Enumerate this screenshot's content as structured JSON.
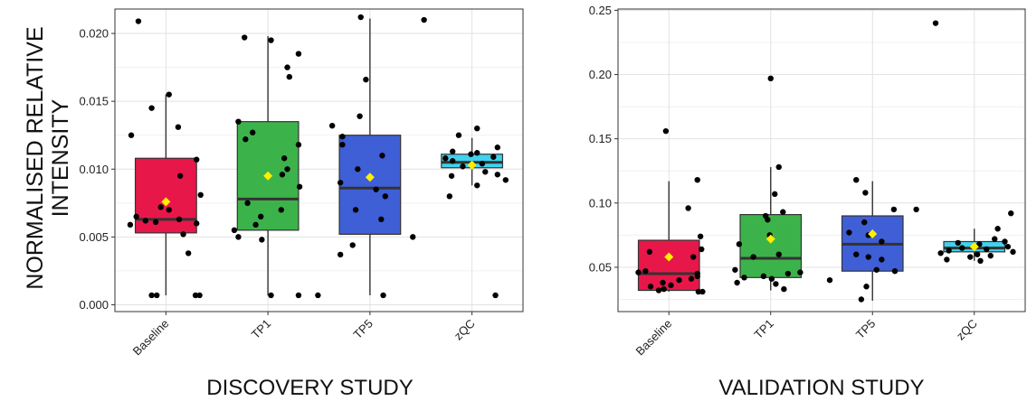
{
  "figure": {
    "ylabel_line1": "NORMALISED RELATIVE",
    "ylabel_line2": "INTENSITY"
  },
  "chart_data": [
    {
      "type": "box",
      "title": "",
      "xlabel": "DISCOVERY STUDY",
      "ylabel": "NORMALISED RELATIVE INTENSITY",
      "ylim": [
        -0.0005,
        0.0218
      ],
      "yticks": [
        0.0,
        0.005,
        0.01,
        0.015,
        0.02
      ],
      "ytick_labels": [
        "0.000",
        "0.005",
        "0.010",
        "0.015",
        "0.020"
      ],
      "grid": true,
      "categories": [
        "Baseline",
        "TP1",
        "TP5",
        "zQC"
      ],
      "colors": [
        "#e8174a",
        "#3cb34a",
        "#3f5fd6",
        "#3fd2ee"
      ],
      "mean_marker_color": "#ffee00",
      "boxes": [
        {
          "category": "Baseline",
          "lower_whisker": 0.0007,
          "q1": 0.0053,
          "median": 0.0063,
          "q3": 0.0108,
          "upper_whisker": 0.0155,
          "mean": 0.0076
        },
        {
          "category": "TP1",
          "lower_whisker": 0.0007,
          "q1": 0.0055,
          "median": 0.0078,
          "q3": 0.0135,
          "upper_whisker": 0.0198,
          "mean": 0.0095
        },
        {
          "category": "TP5",
          "lower_whisker": 0.0007,
          "q1": 0.0052,
          "median": 0.0086,
          "q3": 0.0125,
          "upper_whisker": 0.0211,
          "mean": 0.0094
        },
        {
          "category": "zQC",
          "lower_whisker": 0.0088,
          "q1": 0.0101,
          "median": 0.0105,
          "q3": 0.0111,
          "upper_whisker": 0.0123,
          "mean": 0.0103
        }
      ],
      "points": [
        {
          "category": "Baseline",
          "values": [
            0.0209,
            0.0155,
            0.0145,
            0.0131,
            0.0125,
            0.0107,
            0.0095,
            0.0081,
            0.0072,
            0.007,
            0.0065,
            0.0063,
            0.0062,
            0.0061,
            0.006,
            0.0059,
            0.0052,
            0.0038,
            0.0007,
            0.0007,
            0.0007,
            0.0007
          ],
          "jitter": [
            -0.27,
            0.03,
            -0.14,
            0.12,
            -0.34,
            0.3,
            0.14,
            0.34,
            -0.05,
            0.03,
            -0.29,
            0.13,
            -0.2,
            -0.1,
            0.3,
            -0.35,
            0.17,
            0.22,
            -0.14,
            -0.09,
            0.29,
            0.33
          ]
        },
        {
          "category": "TP1",
          "values": [
            0.0197,
            0.0195,
            0.0185,
            0.0175,
            0.0168,
            0.0135,
            0.0127,
            0.0122,
            0.0118,
            0.0108,
            0.01,
            0.0096,
            0.0087,
            0.0075,
            0.007,
            0.0065,
            0.0059,
            0.0055,
            0.005,
            0.0048,
            0.0007,
            0.0007
          ],
          "jitter": [
            -0.23,
            0.03,
            0.3,
            0.19,
            0.21,
            -0.29,
            -0.15,
            -0.22,
            0.3,
            0.16,
            0.19,
            0.14,
            0.31,
            -0.2,
            0.13,
            -0.07,
            -0.12,
            -0.33,
            -0.29,
            -0.06,
            0.03,
            0.3
          ]
        },
        {
          "category": "TP5",
          "values": [
            0.0212,
            0.021,
            0.0166,
            0.0139,
            0.0132,
            0.0124,
            0.0118,
            0.011,
            0.01,
            0.009,
            0.0085,
            0.008,
            0.007,
            0.0063,
            0.005,
            0.0044,
            0.0037,
            0.0007,
            0.0007
          ],
          "jitter": [
            -0.09,
            0.53,
            -0.04,
            -0.1,
            -0.37,
            -0.27,
            -0.27,
            0.12,
            -0.12,
            -0.29,
            0.06,
            0.15,
            -0.14,
            0.11,
            0.42,
            -0.17,
            -0.29,
            -0.51,
            0.13
          ]
        },
        {
          "category": "zQC",
          "values": [
            0.013,
            0.0125,
            0.0116,
            0.0113,
            0.0112,
            0.0111,
            0.0109,
            0.0108,
            0.0106,
            0.0104,
            0.0102,
            0.0098,
            0.0096,
            0.0095,
            0.0092,
            0.0088,
            0.008,
            0.0007
          ],
          "jitter": [
            0.05,
            -0.13,
            0.25,
            -0.19,
            0.05,
            -0.01,
            0.21,
            -0.26,
            -0.19,
            0.1,
            -0.09,
            0.13,
            0.25,
            -0.2,
            0.33,
            0.05,
            -0.22,
            0.23
          ]
        }
      ]
    },
    {
      "type": "box",
      "title": "",
      "xlabel": "VALIDATION STUDY",
      "ylabel": "",
      "ylim": [
        0.0155,
        0.251
      ],
      "yticks": [
        0.05,
        0.1,
        0.15,
        0.2,
        0.25
      ],
      "ytick_labels": [
        "0.05",
        "0.10",
        "0.15",
        "0.20",
        "0.25"
      ],
      "grid": true,
      "categories": [
        "Baseline",
        "TP1",
        "TP5",
        "zQC"
      ],
      "colors": [
        "#e8174a",
        "#3cb34a",
        "#3f5fd6",
        "#3fd2ee"
      ],
      "mean_marker_color": "#ffee00",
      "boxes": [
        {
          "category": "Baseline",
          "lower_whisker": 0.031,
          "q1": 0.032,
          "median": 0.045,
          "q3": 0.071,
          "upper_whisker": 0.117,
          "mean": 0.058
        },
        {
          "category": "TP1",
          "lower_whisker": 0.032,
          "q1": 0.042,
          "median": 0.057,
          "q3": 0.091,
          "upper_whisker": 0.128,
          "mean": 0.072
        },
        {
          "category": "TP5",
          "lower_whisker": 0.024,
          "q1": 0.047,
          "median": 0.068,
          "q3": 0.09,
          "upper_whisker": 0.117,
          "mean": 0.076
        },
        {
          "category": "zQC",
          "lower_whisker": 0.055,
          "q1": 0.062,
          "median": 0.065,
          "q3": 0.07,
          "upper_whisker": 0.08,
          "mean": 0.066
        }
      ],
      "points": [
        {
          "category": "Baseline",
          "values": [
            0.156,
            0.118,
            0.096,
            0.074,
            0.064,
            0.062,
            0.058,
            0.047,
            0.046,
            0.045,
            0.043,
            0.041,
            0.04,
            0.038,
            0.036,
            0.035,
            0.033,
            0.032,
            0.031,
            0.031
          ],
          "jitter": [
            -0.03,
            0.28,
            0.19,
            0.31,
            0.32,
            -0.19,
            0.24,
            -0.23,
            -0.3,
            0.28,
            0.28,
            0.22,
            0.1,
            -0.06,
            0.02,
            -0.18,
            -0.05,
            -0.1,
            0.33,
            0.29
          ]
        },
        {
          "category": "TP1",
          "values": [
            0.197,
            0.128,
            0.107,
            0.093,
            0.09,
            0.087,
            0.075,
            0.068,
            0.06,
            0.058,
            0.048,
            0.046,
            0.045,
            0.043,
            0.042,
            0.041,
            0.038,
            0.037,
            0.033
          ],
          "jitter": [
            0.0,
            0.08,
            0.04,
            0.12,
            -0.05,
            -0.03,
            -0.01,
            -0.31,
            0.08,
            -0.17,
            -0.35,
            0.29,
            0.17,
            -0.07,
            -0.26,
            0.01,
            -0.33,
            0.05,
            0.13
          ]
        },
        {
          "category": "TP5",
          "values": [
            0.24,
            0.118,
            0.108,
            0.095,
            0.095,
            0.085,
            0.077,
            0.075,
            0.07,
            0.06,
            0.058,
            0.056,
            0.048,
            0.047,
            0.04,
            0.035,
            0.025
          ],
          "jitter": [
            0.62,
            -0.16,
            -0.07,
            0.21,
            0.43,
            -0.08,
            -0.23,
            -0.04,
            0.09,
            -0.16,
            -0.04,
            0.09,
            0.04,
            0.22,
            -0.42,
            -0.06,
            -0.11
          ]
        },
        {
          "category": "zQC",
          "values": [
            0.092,
            0.08,
            0.072,
            0.07,
            0.069,
            0.068,
            0.066,
            0.065,
            0.064,
            0.063,
            0.062,
            0.061,
            0.06,
            0.059,
            0.058,
            0.056,
            0.055
          ],
          "jitter": [
            0.36,
            0.23,
            0.2,
            0.3,
            -0.16,
            0.05,
            0.33,
            -0.12,
            0.12,
            -0.25,
            0.38,
            -0.33,
            0.03,
            0.16,
            -0.04,
            -0.27,
            0.06
          ]
        }
      ]
    }
  ]
}
